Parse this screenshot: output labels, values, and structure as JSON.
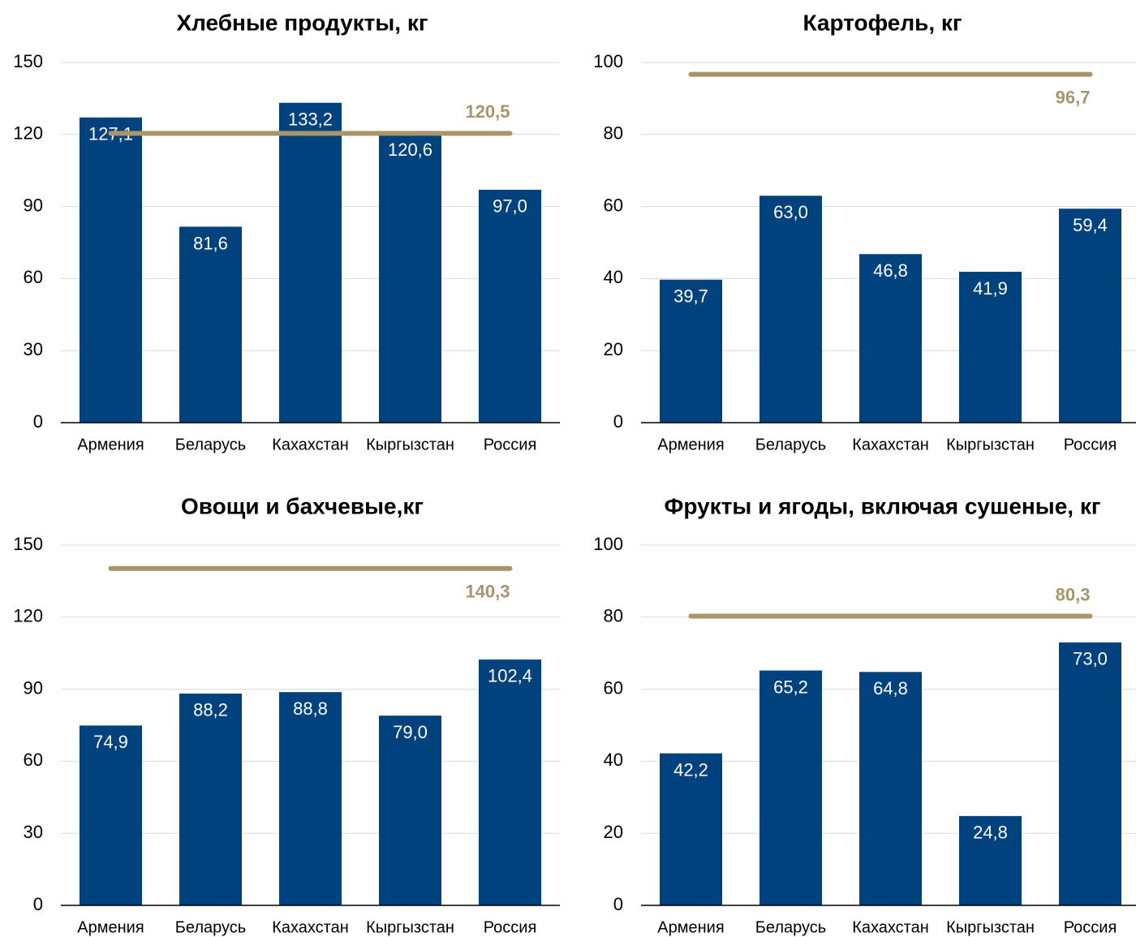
{
  "chart_data": [
    {
      "type": "bar",
      "title": "Хлебные продукты, кг",
      "categories": [
        "Армения",
        "Беларусь",
        "Кахахстан",
        "Кыргызстан",
        "Россия"
      ],
      "values": [
        127.1,
        81.6,
        133.2,
        120.6,
        97.0
      ],
      "value_labels": [
        "127,1",
        "81,6",
        "133,2",
        "120,6",
        "97,0"
      ],
      "color": "#00427d",
      "reference_line": {
        "value": 120.5,
        "label": "120,5",
        "color": "#a8956a"
      },
      "ylim": [
        0,
        150
      ],
      "yticks": [
        0,
        30,
        60,
        90,
        120,
        150
      ],
      "grid": true
    },
    {
      "type": "bar",
      "title": "Картофель, кг",
      "categories": [
        "Армения",
        "Беларусь",
        "Кахахстан",
        "Кыргызстан",
        "Россия"
      ],
      "values": [
        39.7,
        63.0,
        46.8,
        41.9,
        59.4
      ],
      "value_labels": [
        "39,7",
        "63,0",
        "46,8",
        "41,9",
        "59,4"
      ],
      "color": "#00427d",
      "reference_line": {
        "value": 96.7,
        "label": "96,7",
        "color": "#a8956a"
      },
      "ylim": [
        0,
        100
      ],
      "yticks": [
        0,
        20,
        40,
        60,
        80,
        100
      ],
      "grid": true
    },
    {
      "type": "bar",
      "title": "Овощи и бахчевые,кг",
      "categories": [
        "Армения",
        "Беларусь",
        "Кахахстан",
        "Кыргызстан",
        "Россия"
      ],
      "values": [
        74.9,
        88.2,
        88.8,
        79.0,
        102.4
      ],
      "value_labels": [
        "74,9",
        "88,2",
        "88,8",
        "79,0",
        "102,4"
      ],
      "color": "#00427d",
      "reference_line": {
        "value": 140.3,
        "label": "140,3",
        "color": "#a8956a"
      },
      "ylim": [
        0,
        150
      ],
      "yticks": [
        0,
        30,
        60,
        90,
        120,
        150
      ],
      "grid": true
    },
    {
      "type": "bar",
      "title": "Фрукты и ягоды, включая сушеные, кг",
      "categories": [
        "Армения",
        "Беларусь",
        "Кахахстан",
        "Кыргызстан",
        "Россия"
      ],
      "values": [
        42.2,
        65.2,
        64.8,
        24.8,
        73.0
      ],
      "value_labels": [
        "42,2",
        "65,2",
        "64,8",
        "24,8",
        "73,0"
      ],
      "color": "#00427d",
      "reference_line": {
        "value": 80.3,
        "label": "80,3",
        "color": "#a8956a"
      },
      "ylim": [
        0,
        100
      ],
      "yticks": [
        0,
        20,
        40,
        60,
        80,
        100
      ],
      "grid": true
    }
  ]
}
